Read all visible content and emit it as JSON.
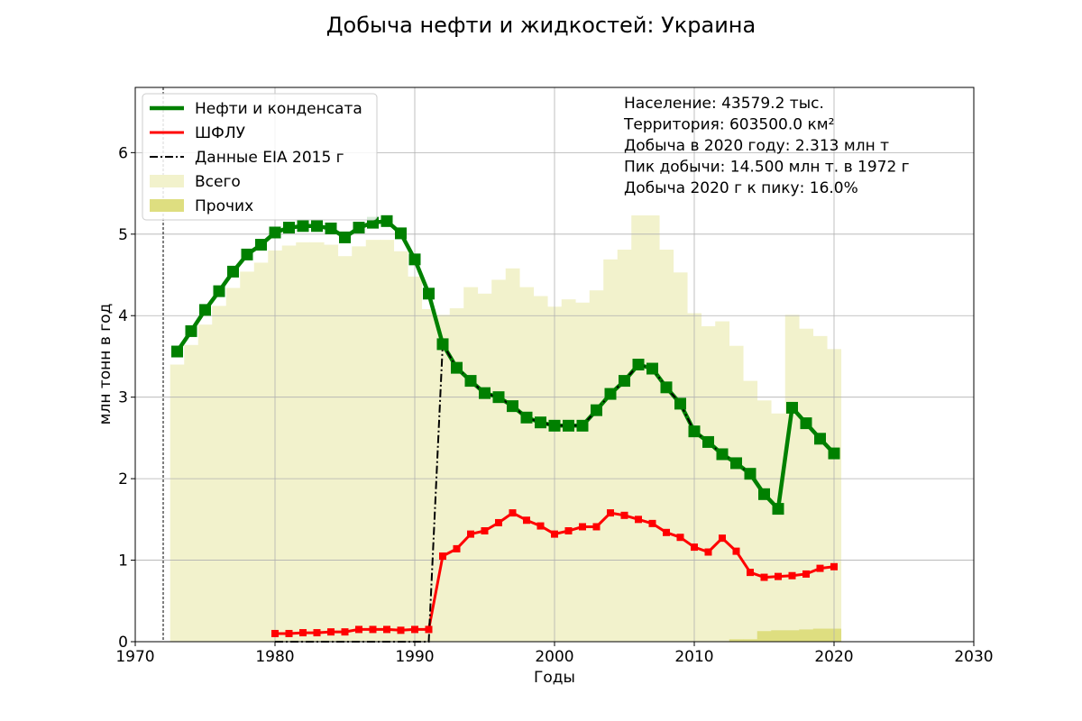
{
  "chart_data": {
    "type": "line",
    "title": "Добыча нефти и жидкостей: Украина",
    "xlabel": "Годы",
    "ylabel": "млн тонн в год",
    "xlim": [
      1970,
      2030
    ],
    "ylim": [
      0,
      6.8
    ],
    "xticks": [
      1970,
      1980,
      1990,
      2000,
      2010,
      2020,
      2030
    ],
    "yticks": [
      0,
      1,
      2,
      3,
      4,
      5,
      6
    ],
    "grid": true,
    "legend_position": "top-left",
    "legend": [
      {
        "label": "Нефти и конденсата",
        "kind": "line",
        "color": "#008000"
      },
      {
        "label": "ШФЛУ",
        "kind": "line",
        "color": "#ff0000"
      },
      {
        "label": "Данные EIA 2015 г",
        "kind": "dashdot",
        "color": "#000000"
      },
      {
        "label": "Всего",
        "kind": "patch",
        "color": "#f2f2cc"
      },
      {
        "label": "Прочих",
        "kind": "patch",
        "color": "#dede80"
      }
    ],
    "annotations": [
      "Население: 43579.2 тыс.",
      "Территория: 603500.0 км²",
      "Добыча в 2020 году: 2.313 млн т",
      "Пик добычи: 14.500 млн т. в 1972 г",
      "Добыча 2020 г к пику: 16.0%"
    ],
    "reference_line_x": 1972,
    "series": [
      {
        "name": "Нефти и конденсата",
        "color": "#008000",
        "x": [
          1973,
          1974,
          1975,
          1976,
          1977,
          1978,
          1979,
          1980,
          1981,
          1982,
          1983,
          1984,
          1985,
          1986,
          1987,
          1988,
          1989,
          1990,
          1991,
          1992,
          1993,
          1994,
          1995,
          1996,
          1997,
          1998,
          1999,
          2000,
          2001,
          2002,
          2003,
          2004,
          2005,
          2006,
          2007,
          2008,
          2009,
          2010,
          2011,
          2012,
          2013,
          2014,
          2015,
          2016,
          2017,
          2018,
          2019,
          2020
        ],
        "y": [
          3.56,
          3.81,
          4.07,
          4.3,
          4.54,
          4.75,
          4.87,
          5.02,
          5.08,
          5.1,
          5.1,
          5.07,
          4.96,
          5.08,
          5.14,
          5.16,
          5.01,
          4.69,
          4.27,
          3.65,
          3.36,
          3.2,
          3.05,
          3.0,
          2.89,
          2.75,
          2.69,
          2.65,
          2.65,
          2.65,
          2.84,
          3.04,
          3.2,
          3.4,
          3.35,
          3.12,
          2.92,
          2.58,
          2.45,
          2.3,
          2.19,
          2.06,
          1.81,
          1.63,
          2.87,
          2.68,
          2.49,
          2.31
        ]
      },
      {
        "name": "ШФЛУ",
        "color": "#ff0000",
        "x": [
          1980,
          1981,
          1982,
          1983,
          1984,
          1985,
          1986,
          1987,
          1988,
          1989,
          1990,
          1991,
          1992,
          1993,
          1994,
          1995,
          1996,
          1997,
          1998,
          1999,
          2000,
          2001,
          2002,
          2003,
          2004,
          2005,
          2006,
          2007,
          2008,
          2009,
          2010,
          2011,
          2012,
          2013,
          2014,
          2015,
          2016,
          2017,
          2018,
          2019,
          2020
        ],
        "y": [
          0.1,
          0.1,
          0.11,
          0.11,
          0.12,
          0.12,
          0.15,
          0.15,
          0.15,
          0.14,
          0.15,
          0.15,
          1.05,
          1.14,
          1.32,
          1.36,
          1.46,
          1.58,
          1.49,
          1.42,
          1.32,
          1.36,
          1.41,
          1.41,
          1.58,
          1.55,
          1.5,
          1.45,
          1.34,
          1.28,
          1.16,
          1.1,
          1.27,
          1.11,
          0.85,
          0.79,
          0.8,
          0.81,
          0.83,
          0.9,
          0.92
        ]
      },
      {
        "name": "Данные EIA 2015 г",
        "color": "#000000",
        "x": [
          1980,
          1981,
          1982,
          1983,
          1984,
          1985,
          1986,
          1987,
          1988,
          1989,
          1990,
          1991,
          1992,
          1993,
          1994,
          1995,
          1996,
          1997,
          1998,
          1999,
          2000,
          2001,
          2002,
          2003,
          2004,
          2005,
          2006,
          2007,
          2008,
          2009,
          2010,
          2011,
          2012,
          2013,
          2014
        ],
        "y": [
          0,
          0,
          0,
          0,
          0,
          0,
          0,
          0,
          0,
          0,
          0,
          0,
          3.65,
          3.36,
          3.2,
          3.05,
          3.0,
          2.89,
          2.75,
          2.69,
          2.65,
          2.65,
          2.65,
          2.84,
          3.04,
          3.2,
          3.4,
          3.35,
          3.12,
          2.92,
          2.58,
          2.45,
          2.3,
          2.19,
          2.06
        ]
      },
      {
        "name": "Всего",
        "color": "#f2f2cc",
        "x": [
          1973,
          1974,
          1975,
          1976,
          1977,
          1978,
          1979,
          1980,
          1981,
          1982,
          1983,
          1984,
          1985,
          1986,
          1987,
          1988,
          1989,
          1990,
          1991,
          1992,
          1993,
          1994,
          1995,
          1996,
          1997,
          1998,
          1999,
          2000,
          2001,
          2002,
          2003,
          2004,
          2005,
          2006,
          2007,
          2008,
          2009,
          2010,
          2011,
          2012,
          2013,
          2014,
          2015,
          2016,
          2017,
          2018,
          2019,
          2020
        ],
        "y": [
          3.4,
          3.64,
          3.89,
          4.12,
          4.34,
          4.54,
          4.65,
          4.8,
          4.86,
          4.9,
          4.9,
          4.87,
          4.73,
          4.85,
          4.93,
          4.93,
          4.79,
          4.48,
          4.08,
          4.01,
          4.09,
          4.35,
          4.27,
          4.44,
          4.58,
          4.35,
          4.24,
          4.11,
          4.2,
          4.16,
          4.31,
          4.69,
          4.81,
          5.23,
          5.23,
          4.81,
          4.53,
          4.03,
          3.87,
          3.93,
          3.63,
          3.2,
          2.96,
          2.8,
          4.01,
          3.84,
          3.75,
          3.59
        ]
      },
      {
        "name": "Прочих",
        "color": "#dede80",
        "x": [
          2013,
          2014,
          2015,
          2016,
          2017,
          2018,
          2019,
          2020
        ],
        "y": [
          0.03,
          0.03,
          0.13,
          0.14,
          0.14,
          0.15,
          0.16,
          0.16
        ]
      }
    ]
  }
}
